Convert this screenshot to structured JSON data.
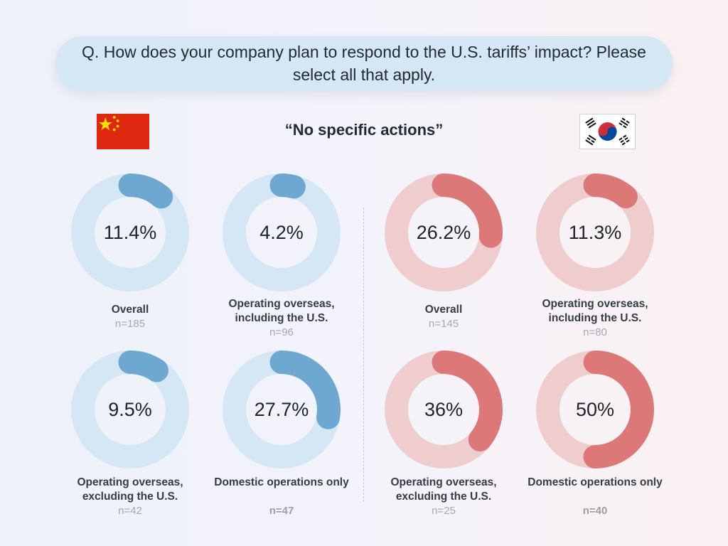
{
  "question": "Q. How does your company plan to respond to the U.S. tariffs’ impact? Please select all that apply.",
  "subtitle": "“No specific actions”",
  "colors": {
    "china_ring": "#d5e7f5",
    "china_arc": "#6ea8d0",
    "korea_ring": "#efcdcf",
    "korea_arc": "#dc7878"
  },
  "chart_data": {
    "type": "donut",
    "groups": [
      {
        "country": "China",
        "flag": "china-flag-icon",
        "segments": [
          {
            "label": "Overall",
            "value": 11.4,
            "display": "11.4%",
            "n": "n=185"
          },
          {
            "label": "Operating overseas, including the U.S.",
            "value": 4.2,
            "display": "4.2%",
            "n": "n=96"
          },
          {
            "label": "Operating overseas, excluding the U.S.",
            "value": 9.5,
            "display": "9.5%",
            "n": "n=42"
          },
          {
            "label": "Domestic operations only",
            "value": 27.7,
            "display": "27.7%",
            "n": "n=47"
          }
        ]
      },
      {
        "country": "South Korea",
        "flag": "south-korea-flag-icon",
        "segments": [
          {
            "label": "Overall",
            "value": 26.2,
            "display": "26.2%",
            "n": "n=145"
          },
          {
            "label": "Operating overseas, including the U.S.",
            "value": 11.3,
            "display": "11.3%",
            "n": "n=80"
          },
          {
            "label": "Operating overseas, excluding the U.S.",
            "value": 36,
            "display": "36%",
            "n": "n=25"
          },
          {
            "label": "Domestic operations only",
            "value": 50,
            "display": "50%",
            "n": "n=40"
          }
        ]
      }
    ]
  }
}
